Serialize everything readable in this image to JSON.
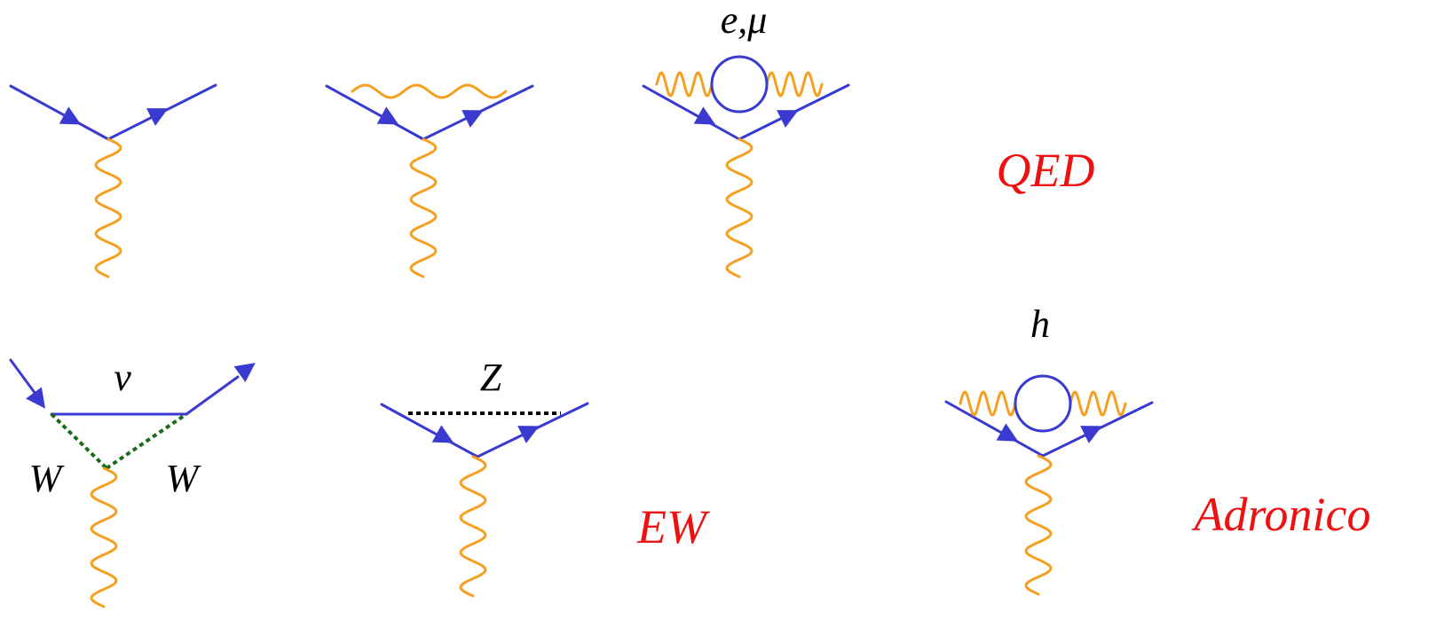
{
  "colors": {
    "fermion": "#3a3ad0",
    "photon": "#f5a020",
    "w_boson": "#1a6b1a",
    "z_boson": "#000000",
    "category": "#ee1111"
  },
  "diagrams": {
    "qed_tree": {},
    "qed_vertex_correction": {},
    "qed_vacuum_polarization": {
      "loop_label": "e,μ"
    },
    "ew_w_loop": {
      "internal_label": "ν",
      "boson_left_label": "W",
      "boson_right_label": "W"
    },
    "ew_z_exchange": {
      "boson_label": "Z"
    },
    "hadronic_vacuum_polarization": {
      "loop_label": "h"
    }
  },
  "categories": {
    "qed": "QED",
    "ew": "EW",
    "hadronic": "Adronico"
  }
}
